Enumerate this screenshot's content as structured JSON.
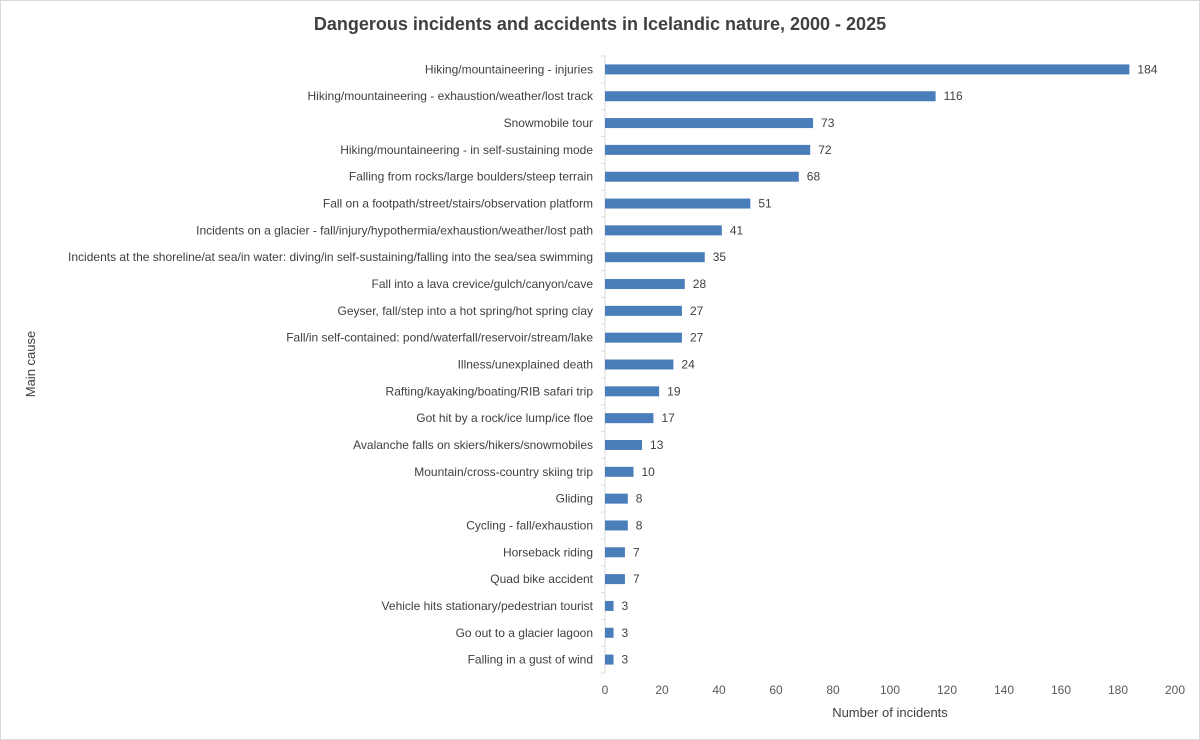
{
  "chart_data": {
    "type": "bar",
    "orientation": "horizontal",
    "title": "Dangerous incidents and accidents in Icelandic nature, 2000 - 2025",
    "xlabel": "Number of incidents",
    "ylabel": "Main cause",
    "xlim": [
      0,
      200
    ],
    "xticks": [
      0,
      20,
      40,
      60,
      80,
      100,
      120,
      140,
      160,
      180,
      200
    ],
    "bar_color": "#4a7ebb",
    "grid": false,
    "legend": "none",
    "categories": [
      "Hiking/mountaineering - injuries",
      "Hiking/mountaineering - exhaustion/weather/lost track",
      "Snowmobile tour",
      "Hiking/mountaineering - in self-sustaining mode",
      "Falling from rocks/large boulders/steep terrain",
      "Fall on a footpath/street/stairs/observation platform",
      "Incidents on a glacier - fall/injury/hypothermia/exhaustion/weather/lost path",
      "Incidents at the shoreline/at sea/in water: diving/in self-sustaining/falling into the sea/sea swimming",
      "Fall into a lava crevice/gulch/canyon/cave",
      "Geyser, fall/step into a hot spring/hot spring clay",
      "Fall/in self-contained: pond/waterfall/reservoir/stream/lake",
      "Illness/unexplained death",
      "Rafting/kayaking/boating/RIB safari trip",
      "Got hit by a rock/ice lump/ice floe",
      "Avalanche falls on skiers/hikers/snowmobiles",
      "Mountain/cross-country skiing trip",
      "Gliding",
      "Cycling - fall/exhaustion",
      "Horseback riding",
      "Quad bike accident",
      "Vehicle hits stationary/pedestrian tourist",
      "Go out to a glacier lagoon",
      "Falling in a gust of wind"
    ],
    "values": [
      184,
      116,
      73,
      72,
      68,
      51,
      41,
      35,
      28,
      27,
      27,
      24,
      19,
      17,
      13,
      10,
      8,
      8,
      7,
      7,
      3,
      3,
      3
    ]
  }
}
